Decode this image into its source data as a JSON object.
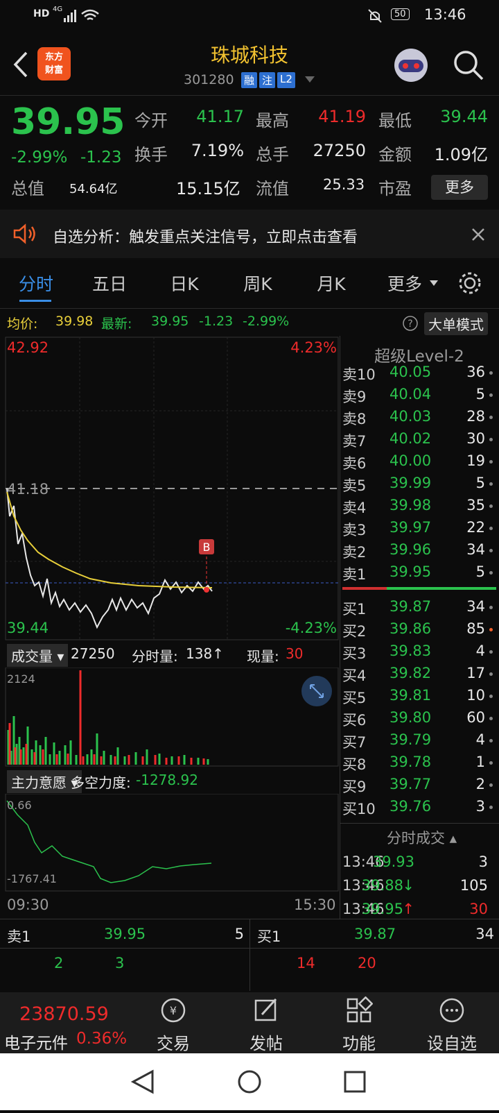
{
  "status_bar": {
    "network": "4G",
    "hd": "HD",
    "battery": "50",
    "time": "13:46"
  },
  "header": {
    "logo": [
      "东方",
      "财富"
    ],
    "title": "珠城科技",
    "code": "301280",
    "tags": [
      "融",
      "注",
      "L2"
    ]
  },
  "quote": {
    "price": "39.95",
    "change_pct": "-2.99%",
    "change": "-1.23",
    "stats": [
      {
        "label": "今开",
        "value": "41.17",
        "color": "green"
      },
      {
        "label": "最高",
        "value": "41.19",
        "color": "red"
      },
      {
        "label": "最低",
        "value": "39.44",
        "color": "green"
      },
      {
        "label": "换手",
        "value": "7.19%",
        "color": "white"
      },
      {
        "label": "总手",
        "value": "27250",
        "color": "white"
      },
      {
        "label": "金额",
        "value": "1.09亿",
        "color": "white"
      },
      {
        "label": "总值",
        "value": "54.64亿",
        "color": "white"
      },
      {
        "label": "流值",
        "value": "15.15亿",
        "color": "white"
      },
      {
        "label": "市盈",
        "value": "25.33",
        "color": "white"
      }
    ],
    "more": "更多"
  },
  "notice": "自选分析：触发重点关注信号，立即点击查看",
  "tabs": [
    "分时",
    "五日",
    "日K",
    "周K",
    "月K",
    "更多"
  ],
  "info_line": {
    "avg_label": "均价:",
    "avg": "39.98",
    "latest_label": "最新:",
    "latest": "39.95",
    "change": "-1.23",
    "pct": "-2.99%",
    "mode": "大单模式"
  },
  "chart": {
    "high": "42.92",
    "high_pct": "4.23%",
    "prev_close": "41.18",
    "low": "39.44",
    "low_pct": "-4.23%",
    "marker": "B",
    "start": "09:30",
    "end": "15:30"
  },
  "volume": {
    "label": "成交量",
    "total": "27250",
    "minute_label": "分时量:",
    "minute": "138↑",
    "now_label": "现量:",
    "now": "30",
    "max": "2124"
  },
  "force": {
    "label": "主力意愿",
    "name": "多空力度:",
    "value": "-1278.92",
    "top": "0.66",
    "bottom": "-1767.41"
  },
  "level2": {
    "title": "超级Level-2",
    "asks": [
      [
        "卖10",
        "40.05",
        "36"
      ],
      [
        "卖9",
        "40.04",
        "5"
      ],
      [
        "卖8",
        "40.03",
        "28"
      ],
      [
        "卖7",
        "40.02",
        "30"
      ],
      [
        "卖6",
        "40.00",
        "19"
      ],
      [
        "卖5",
        "39.99",
        "5"
      ],
      [
        "卖4",
        "39.98",
        "35"
      ],
      [
        "卖3",
        "39.97",
        "22"
      ],
      [
        "卖2",
        "39.96",
        "34"
      ],
      [
        "卖1",
        "39.95",
        "5"
      ]
    ],
    "bids": [
      [
        "买1",
        "39.87",
        "34"
      ],
      [
        "买2",
        "39.86",
        "85"
      ],
      [
        "买3",
        "39.83",
        "4"
      ],
      [
        "买4",
        "39.82",
        "17"
      ],
      [
        "买5",
        "39.81",
        "10"
      ],
      [
        "买6",
        "39.80",
        "60"
      ],
      [
        "买7",
        "39.79",
        "4"
      ],
      [
        "买8",
        "39.78",
        "1"
      ],
      [
        "买9",
        "39.77",
        "2"
      ],
      [
        "买10",
        "39.76",
        "3"
      ]
    ]
  },
  "trades": {
    "title": "分时成交",
    "rows": [
      {
        "time": "13:46",
        "price": "39.93",
        "volume": "3"
      },
      {
        "time": "13:46",
        "price": "39.88",
        "arrow": "↓",
        "volume": "105"
      },
      {
        "time": "13:46",
        "price": "39.95",
        "arrow": "↑",
        "volume": "30"
      }
    ]
  },
  "bottom_quote": {
    "ask": [
      "卖1",
      "39.95",
      "5"
    ],
    "bid": [
      "买1",
      "39.87",
      "34"
    ],
    "ask_counts": [
      "2",
      "3"
    ],
    "bid_counts": [
      "14",
      "20"
    ]
  },
  "index": {
    "value": "23870.59",
    "name": "电子元件",
    "pct": "0.36%"
  },
  "nav": [
    "交易",
    "发帖",
    "功能",
    "设自选"
  ]
}
